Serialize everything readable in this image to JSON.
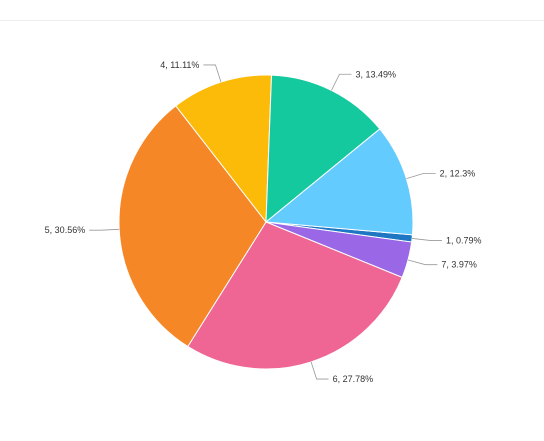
{
  "chart_data": {
    "type": "pie",
    "labels": [
      "1",
      "7",
      "6",
      "5",
      "4",
      "3",
      "2"
    ],
    "values": [
      0.79,
      3.97,
      27.78,
      30.56,
      11.11,
      13.49,
      12.3
    ],
    "data_labels": [
      "1, 0.79%",
      "7, 3.97%",
      "6, 27.78%",
      "5, 30.56%",
      "4, 11.11%",
      "3, 13.49%",
      "2, 12.3%"
    ],
    "colors": [
      "#1f77c4",
      "#9a67e6",
      "#ef6593",
      "#f58727",
      "#fdbb09",
      "#14c99d",
      "#64cbff"
    ],
    "title": "",
    "legend": "none"
  }
}
